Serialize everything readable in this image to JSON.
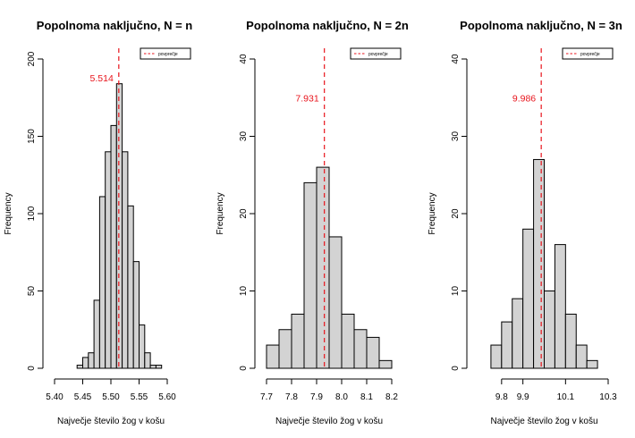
{
  "chart_data": [
    {
      "type": "bar",
      "title": "Popolnoma naključno, N = n",
      "xlabel": "Največje število žog v košu",
      "ylabel": "Frequency",
      "xlim": [
        5.4,
        5.6
      ],
      "ylim": [
        0,
        200
      ],
      "xticks": [
        "5.40",
        "5.45",
        "5.50",
        "5.55",
        "5.60"
      ],
      "xtick_values": [
        5.4,
        5.45,
        5.5,
        5.55,
        5.6
      ],
      "yticks": [
        "0",
        "50",
        "100",
        "150",
        "200"
      ],
      "ytick_values": [
        0,
        50,
        100,
        150,
        200
      ],
      "bins": [
        [
          5.44,
          5.45,
          2
        ],
        [
          5.45,
          5.46,
          7
        ],
        [
          5.46,
          5.47,
          10
        ],
        [
          5.47,
          5.48,
          44
        ],
        [
          5.48,
          5.49,
          111
        ],
        [
          5.49,
          5.5,
          140
        ],
        [
          5.5,
          5.51,
          157
        ],
        [
          5.51,
          5.52,
          184
        ],
        [
          5.52,
          5.53,
          140
        ],
        [
          5.53,
          5.54,
          105
        ],
        [
          5.54,
          5.55,
          69
        ],
        [
          5.55,
          5.56,
          28
        ],
        [
          5.56,
          5.57,
          10
        ],
        [
          5.57,
          5.58,
          2
        ],
        [
          5.58,
          5.59,
          2
        ]
      ],
      "mean": 5.514,
      "mean_label": "5.514",
      "mean_label_y": 188,
      "legend": {
        "label": "povprečje",
        "position": "top-right",
        "color": "#e8141c"
      },
      "bar_color": "#d3d3d3"
    },
    {
      "type": "bar",
      "title": "Popolnoma naključno, N = 2n",
      "xlabel": "Največje število žog v košu",
      "ylabel": "Frequency",
      "xlim": [
        7.7,
        8.2
      ],
      "ylim": [
        0,
        40
      ],
      "xticks": [
        "7.7",
        "7.8",
        "7.9",
        "8.0",
        "8.1",
        "8.2"
      ],
      "xtick_values": [
        7.7,
        7.8,
        7.9,
        8.0,
        8.1,
        8.2
      ],
      "yticks": [
        "0",
        "10",
        "20",
        "30",
        "40"
      ],
      "ytick_values": [
        0,
        10,
        20,
        30,
        40
      ],
      "bins": [
        [
          7.7,
          7.75,
          3
        ],
        [
          7.75,
          7.8,
          5
        ],
        [
          7.8,
          7.85,
          7
        ],
        [
          7.85,
          7.9,
          24
        ],
        [
          7.9,
          7.95,
          26
        ],
        [
          7.95,
          8.0,
          17
        ],
        [
          8.0,
          8.05,
          7
        ],
        [
          8.05,
          8.1,
          5
        ],
        [
          8.1,
          8.15,
          4
        ],
        [
          8.15,
          8.2,
          1
        ]
      ],
      "mean": 7.931,
      "mean_label": "7.931",
      "mean_label_y": 35,
      "legend": {
        "label": "povprečje",
        "position": "top-right",
        "color": "#e8141c"
      },
      "bar_color": "#d3d3d3"
    },
    {
      "type": "bar",
      "title": "Popolnoma naključno, N = 3n",
      "xlabel": "Največje število žog v košu",
      "ylabel": "Frequency",
      "xlim": [
        9.7,
        10.3
      ],
      "ylim": [
        0,
        40
      ],
      "xticks": [
        "9.8",
        "9.9",
        "10.1",
        "10.3"
      ],
      "xtick_values": [
        9.8,
        9.9,
        10.1,
        10.3
      ],
      "yticks": [
        "0",
        "10",
        "20",
        "30",
        "40"
      ],
      "ytick_values": [
        0,
        10,
        20,
        30,
        40
      ],
      "bins": [
        [
          9.75,
          9.8,
          3
        ],
        [
          9.8,
          9.85,
          6
        ],
        [
          9.85,
          9.9,
          9
        ],
        [
          9.9,
          9.95,
          18
        ],
        [
          9.95,
          10.0,
          27
        ],
        [
          10.0,
          10.05,
          10
        ],
        [
          10.05,
          10.1,
          16
        ],
        [
          10.1,
          10.15,
          7
        ],
        [
          10.15,
          10.2,
          3
        ],
        [
          10.2,
          10.25,
          1
        ]
      ],
      "mean": 9.986,
      "mean_label": "9.986",
      "mean_label_y": 35,
      "legend": {
        "label": "povprečje",
        "position": "top-right",
        "color": "#e8141c"
      },
      "bar_color": "#d3d3d3"
    }
  ]
}
